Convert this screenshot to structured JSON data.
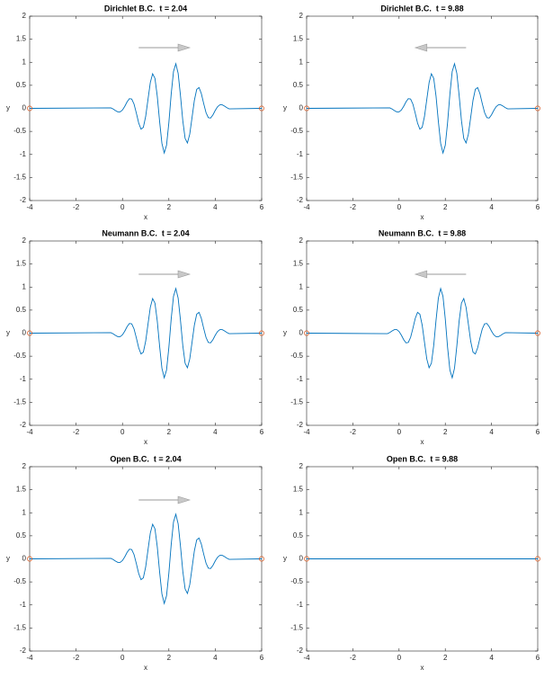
{
  "chart_data": [
    {
      "type": "line",
      "title": "Dirichlet B.C.  t = 2.04",
      "xlabel": "x",
      "ylabel": "y",
      "xlim": [
        -4,
        6
      ],
      "xticks": [
        -4,
        -2,
        0,
        2,
        4,
        6
      ],
      "ylim": [
        -2,
        2
      ],
      "yticks": [
        -2,
        -1.5,
        -1,
        -0.5,
        0,
        0.5,
        1,
        1.5,
        2
      ],
      "color": "#0072bd",
      "arrow": "right",
      "x": [
        -4,
        -0.5,
        -0.4,
        -0.3,
        -0.2,
        -0.1,
        0,
        0.1,
        0.2,
        0.3,
        0.4,
        0.5,
        0.6,
        0.7,
        0.8,
        0.9,
        1,
        1.1,
        1.2,
        1.3,
        1.4,
        1.5,
        1.6,
        1.7,
        1.8,
        1.9,
        2,
        2.1,
        2.2,
        2.3,
        2.4,
        2.5,
        2.6,
        2.7,
        2.8,
        2.9,
        3,
        3.1,
        3.2,
        3.3,
        3.4,
        3.5,
        3.6,
        3.7,
        3.8,
        3.9,
        4,
        4.1,
        4.2,
        4.3,
        4.4,
        4.5,
        4.6,
        6
      ],
      "values": [
        0,
        0.011,
        -0.015,
        -0.049,
        -0.076,
        -0.077,
        -0.036,
        0.044,
        0.141,
        0.21,
        0.201,
        0.091,
        -0.106,
        -0.32,
        -0.451,
        -0.412,
        -0.176,
        0.195,
        0.56,
        0.751,
        0.652,
        0.265,
        -0.279,
        -0.76,
        -0.969,
        -0.8,
        -0.309,
        0.309,
        0.8,
        0.969,
        0.76,
        0.279,
        -0.265,
        -0.652,
        -0.751,
        -0.56,
        -0.195,
        0.176,
        0.412,
        0.451,
        0.32,
        0.106,
        -0.091,
        -0.201,
        -0.21,
        -0.141,
        -0.044,
        0.036,
        0.077,
        0.076,
        0.049,
        0.015,
        -0.011,
        0
      ],
      "markers": {
        "x": [
          -4,
          6
        ],
        "values": [
          0,
          0
        ],
        "color": "#d95319"
      }
    },
    {
      "type": "line",
      "title": "Dirichlet B.C.  t = 9.88",
      "xlabel": "x",
      "ylabel": "y",
      "xlim": [
        -4,
        6
      ],
      "xticks": [
        -4,
        -2,
        0,
        2,
        4,
        6
      ],
      "ylim": [
        -2,
        2
      ],
      "yticks": [
        -2,
        -1.5,
        -1,
        -0.5,
        0,
        0.5,
        1,
        1.5,
        2
      ],
      "color": "#0072bd",
      "arrow": "left",
      "x": [
        -4,
        -0.4,
        -0.3,
        -0.2,
        -0.1,
        0,
        0.1,
        0.2,
        0.3,
        0.4,
        0.5,
        0.6,
        0.7,
        0.8,
        0.9,
        1,
        1.1,
        1.2,
        1.3,
        1.4,
        1.5,
        1.6,
        1.7,
        1.8,
        1.9,
        2,
        2.1,
        2.2,
        2.3,
        2.4,
        2.5,
        2.6,
        2.7,
        2.8,
        2.9,
        3,
        3.1,
        3.2,
        3.3,
        3.4,
        3.5,
        3.6,
        3.7,
        3.8,
        3.9,
        4,
        4.1,
        4.2,
        4.3,
        4.4,
        4.5,
        4.6,
        4.7,
        6
      ],
      "values": [
        0,
        0.011,
        -0.015,
        -0.049,
        -0.076,
        -0.077,
        -0.036,
        0.044,
        0.141,
        0.21,
        0.201,
        0.091,
        -0.106,
        -0.32,
        -0.451,
        -0.412,
        -0.176,
        0.195,
        0.56,
        0.751,
        0.652,
        0.265,
        -0.279,
        -0.76,
        -0.969,
        -0.8,
        -0.309,
        0.309,
        0.8,
        0.969,
        0.76,
        0.279,
        -0.265,
        -0.652,
        -0.751,
        -0.56,
        -0.195,
        0.176,
        0.412,
        0.451,
        0.32,
        0.106,
        -0.091,
        -0.201,
        -0.21,
        -0.141,
        -0.044,
        0.036,
        0.077,
        0.076,
        0.049,
        0.015,
        -0.011,
        0
      ],
      "markers": {
        "x": [
          -4,
          6
        ],
        "values": [
          0,
          0
        ],
        "color": "#d95319"
      }
    },
    {
      "type": "line",
      "title": "Neumann B.C.  t = 2.04",
      "xlabel": "x",
      "ylabel": "y",
      "xlim": [
        -4,
        6
      ],
      "xticks": [
        -4,
        -2,
        0,
        2,
        4,
        6
      ],
      "ylim": [
        -2,
        2
      ],
      "yticks": [
        -2,
        -1.5,
        -1,
        -0.5,
        0,
        0.5,
        1,
        1.5,
        2
      ],
      "color": "#0072bd",
      "arrow": "right",
      "x": [
        -4,
        -0.5,
        -0.4,
        -0.3,
        -0.2,
        -0.1,
        0,
        0.1,
        0.2,
        0.3,
        0.4,
        0.5,
        0.6,
        0.7,
        0.8,
        0.9,
        1,
        1.1,
        1.2,
        1.3,
        1.4,
        1.5,
        1.6,
        1.7,
        1.8,
        1.9,
        2,
        2.1,
        2.2,
        2.3,
        2.4,
        2.5,
        2.6,
        2.7,
        2.8,
        2.9,
        3,
        3.1,
        3.2,
        3.3,
        3.4,
        3.5,
        3.6,
        3.7,
        3.8,
        3.9,
        4,
        4.1,
        4.2,
        4.3,
        4.4,
        4.5,
        4.6,
        6
      ],
      "values": [
        0,
        0.011,
        -0.015,
        -0.049,
        -0.076,
        -0.077,
        -0.036,
        0.044,
        0.141,
        0.21,
        0.201,
        0.091,
        -0.106,
        -0.32,
        -0.451,
        -0.412,
        -0.176,
        0.195,
        0.56,
        0.751,
        0.652,
        0.265,
        -0.279,
        -0.76,
        -0.969,
        -0.8,
        -0.309,
        0.309,
        0.8,
        0.969,
        0.76,
        0.279,
        -0.265,
        -0.652,
        -0.751,
        -0.56,
        -0.195,
        0.176,
        0.412,
        0.451,
        0.32,
        0.106,
        -0.091,
        -0.201,
        -0.21,
        -0.141,
        -0.044,
        0.036,
        0.077,
        0.076,
        0.049,
        0.015,
        -0.011,
        0
      ],
      "markers": {
        "x": [
          -4,
          6
        ],
        "values": [
          0,
          0
        ],
        "color": "#d95319"
      }
    },
    {
      "type": "line",
      "title": "Neumann B.C.  t = 9.88",
      "xlabel": "x",
      "ylabel": "y",
      "xlim": [
        -4,
        6
      ],
      "xticks": [
        -4,
        -2,
        0,
        2,
        4,
        6
      ],
      "ylim": [
        -2,
        2
      ],
      "yticks": [
        -2,
        -1.5,
        -1,
        -0.5,
        0,
        0.5,
        1,
        1.5,
        2
      ],
      "color": "#0072bd",
      "arrow": "left",
      "x": [
        -4,
        -0.5,
        -0.4,
        -0.3,
        -0.2,
        -0.1,
        0,
        0.1,
        0.2,
        0.3,
        0.4,
        0.5,
        0.6,
        0.7,
        0.8,
        0.9,
        1,
        1.1,
        1.2,
        1.3,
        1.4,
        1.5,
        1.6,
        1.7,
        1.8,
        1.9,
        2,
        2.1,
        2.2,
        2.3,
        2.4,
        2.5,
        2.6,
        2.7,
        2.8,
        2.9,
        3,
        3.1,
        3.2,
        3.3,
        3.4,
        3.5,
        3.6,
        3.7,
        3.8,
        3.9,
        4,
        4.1,
        4.2,
        4.3,
        4.4,
        4.5,
        4.6,
        6
      ],
      "values": [
        0,
        -0.011,
        0.015,
        0.049,
        0.076,
        0.077,
        0.036,
        -0.044,
        -0.141,
        -0.21,
        -0.201,
        -0.091,
        0.106,
        0.32,
        0.451,
        0.412,
        0.176,
        -0.195,
        -0.56,
        -0.751,
        -0.652,
        -0.265,
        0.279,
        0.76,
        0.969,
        0.8,
        0.309,
        -0.309,
        -0.8,
        -0.969,
        -0.76,
        -0.279,
        0.265,
        0.652,
        0.751,
        0.56,
        0.195,
        -0.176,
        -0.412,
        -0.451,
        -0.32,
        -0.106,
        0.091,
        0.201,
        0.21,
        0.141,
        0.044,
        -0.036,
        -0.077,
        -0.076,
        -0.049,
        -0.015,
        0.011,
        0
      ],
      "markers": {
        "x": [
          -4,
          6
        ],
        "values": [
          0,
          0
        ],
        "color": "#d95319"
      }
    },
    {
      "type": "line",
      "title": "Open B.C.  t = 2.04",
      "xlabel": "x",
      "ylabel": "y",
      "xlim": [
        -4,
        6
      ],
      "xticks": [
        -4,
        -2,
        0,
        2,
        4,
        6
      ],
      "ylim": [
        -2,
        2
      ],
      "yticks": [
        -2,
        -1.5,
        -1,
        -0.5,
        0,
        0.5,
        1,
        1.5,
        2
      ],
      "color": "#0072bd",
      "arrow": "right",
      "x": [
        -4,
        -0.5,
        -0.4,
        -0.3,
        -0.2,
        -0.1,
        0,
        0.1,
        0.2,
        0.3,
        0.4,
        0.5,
        0.6,
        0.7,
        0.8,
        0.9,
        1,
        1.1,
        1.2,
        1.3,
        1.4,
        1.5,
        1.6,
        1.7,
        1.8,
        1.9,
        2,
        2.1,
        2.2,
        2.3,
        2.4,
        2.5,
        2.6,
        2.7,
        2.8,
        2.9,
        3,
        3.1,
        3.2,
        3.3,
        3.4,
        3.5,
        3.6,
        3.7,
        3.8,
        3.9,
        4,
        4.1,
        4.2,
        4.3,
        4.4,
        4.5,
        4.6,
        6
      ],
      "values": [
        0,
        0.011,
        -0.015,
        -0.049,
        -0.076,
        -0.077,
        -0.036,
        0.044,
        0.141,
        0.21,
        0.201,
        0.091,
        -0.106,
        -0.32,
        -0.451,
        -0.412,
        -0.176,
        0.195,
        0.56,
        0.751,
        0.652,
        0.265,
        -0.279,
        -0.76,
        -0.969,
        -0.8,
        -0.309,
        0.309,
        0.8,
        0.969,
        0.76,
        0.279,
        -0.265,
        -0.652,
        -0.751,
        -0.56,
        -0.195,
        0.176,
        0.412,
        0.451,
        0.32,
        0.106,
        -0.091,
        -0.201,
        -0.21,
        -0.141,
        -0.044,
        0.036,
        0.077,
        0.076,
        0.049,
        0.015,
        -0.011,
        0
      ],
      "markers": {
        "x": [
          -4,
          6
        ],
        "values": [
          0,
          0
        ],
        "color": "#d95319"
      }
    },
    {
      "type": "line",
      "title": "Open B.C.  t = 9.88",
      "xlabel": "x",
      "ylabel": "y",
      "xlim": [
        -4,
        6
      ],
      "xticks": [
        -4,
        -2,
        0,
        2,
        4,
        6
      ],
      "ylim": [
        -2,
        2
      ],
      "yticks": [
        -2,
        -1.5,
        -1,
        -0.5,
        0,
        0.5,
        1,
        1.5,
        2
      ],
      "color": "#0072bd",
      "x": [
        -4,
        6
      ],
      "values": [
        0,
        0
      ],
      "markers": {
        "x": [
          -4,
          6
        ],
        "values": [
          0,
          0
        ],
        "color": "#d95319"
      }
    }
  ]
}
